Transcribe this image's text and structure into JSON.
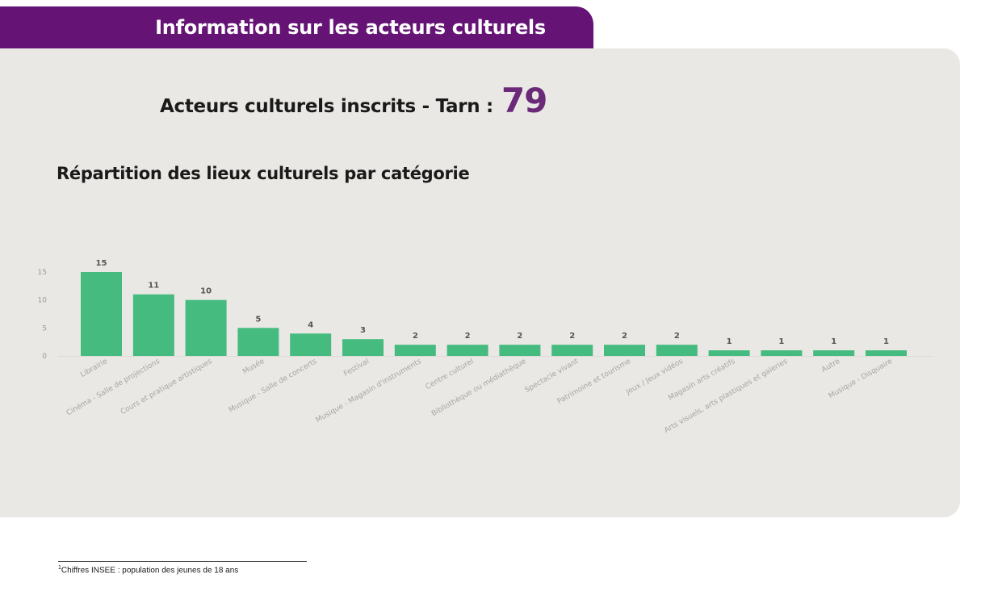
{
  "banner": {
    "title": "Information sur les acteurs culturels"
  },
  "summary": {
    "label": "Acteurs culturels inscrits - Tarn :",
    "value": "79"
  },
  "section": {
    "title": "Répartition des lieux culturels par catégorie"
  },
  "chart_data": {
    "type": "bar",
    "categories": [
      "Librairie",
      "Cinéma - Salle de projections",
      "Cours et pratique artistiques",
      "Musée",
      "Musique - Salle de concerts",
      "Festival",
      "Musique - Magasin d'instruments",
      "Centre culturel",
      "Bibliothèque ou médiathèque",
      "Spectacle vivant",
      "Patrimoine et tourisme",
      "Jeux / Jeux vidéos",
      "Magasin arts créatifs",
      "Arts visuels, arts plastiques et galeries",
      "Autre",
      "Musique - Disquaire"
    ],
    "values": [
      15,
      11,
      10,
      5,
      4,
      3,
      2,
      2,
      2,
      2,
      2,
      2,
      1,
      1,
      1,
      1
    ],
    "yticks": [
      0,
      5,
      10,
      15
    ],
    "ylim": [
      0,
      15
    ],
    "grid": false,
    "legend": false,
    "bar_color": "#46bb7f"
  },
  "footnote": {
    "marker": "1",
    "text": "Chiffres INSEE : population des jeunes de 18 ans"
  },
  "colors": {
    "banner": "#651475",
    "panel": "#eae8e4",
    "accent": "#6b2a78",
    "bar": "#46bb7f"
  }
}
